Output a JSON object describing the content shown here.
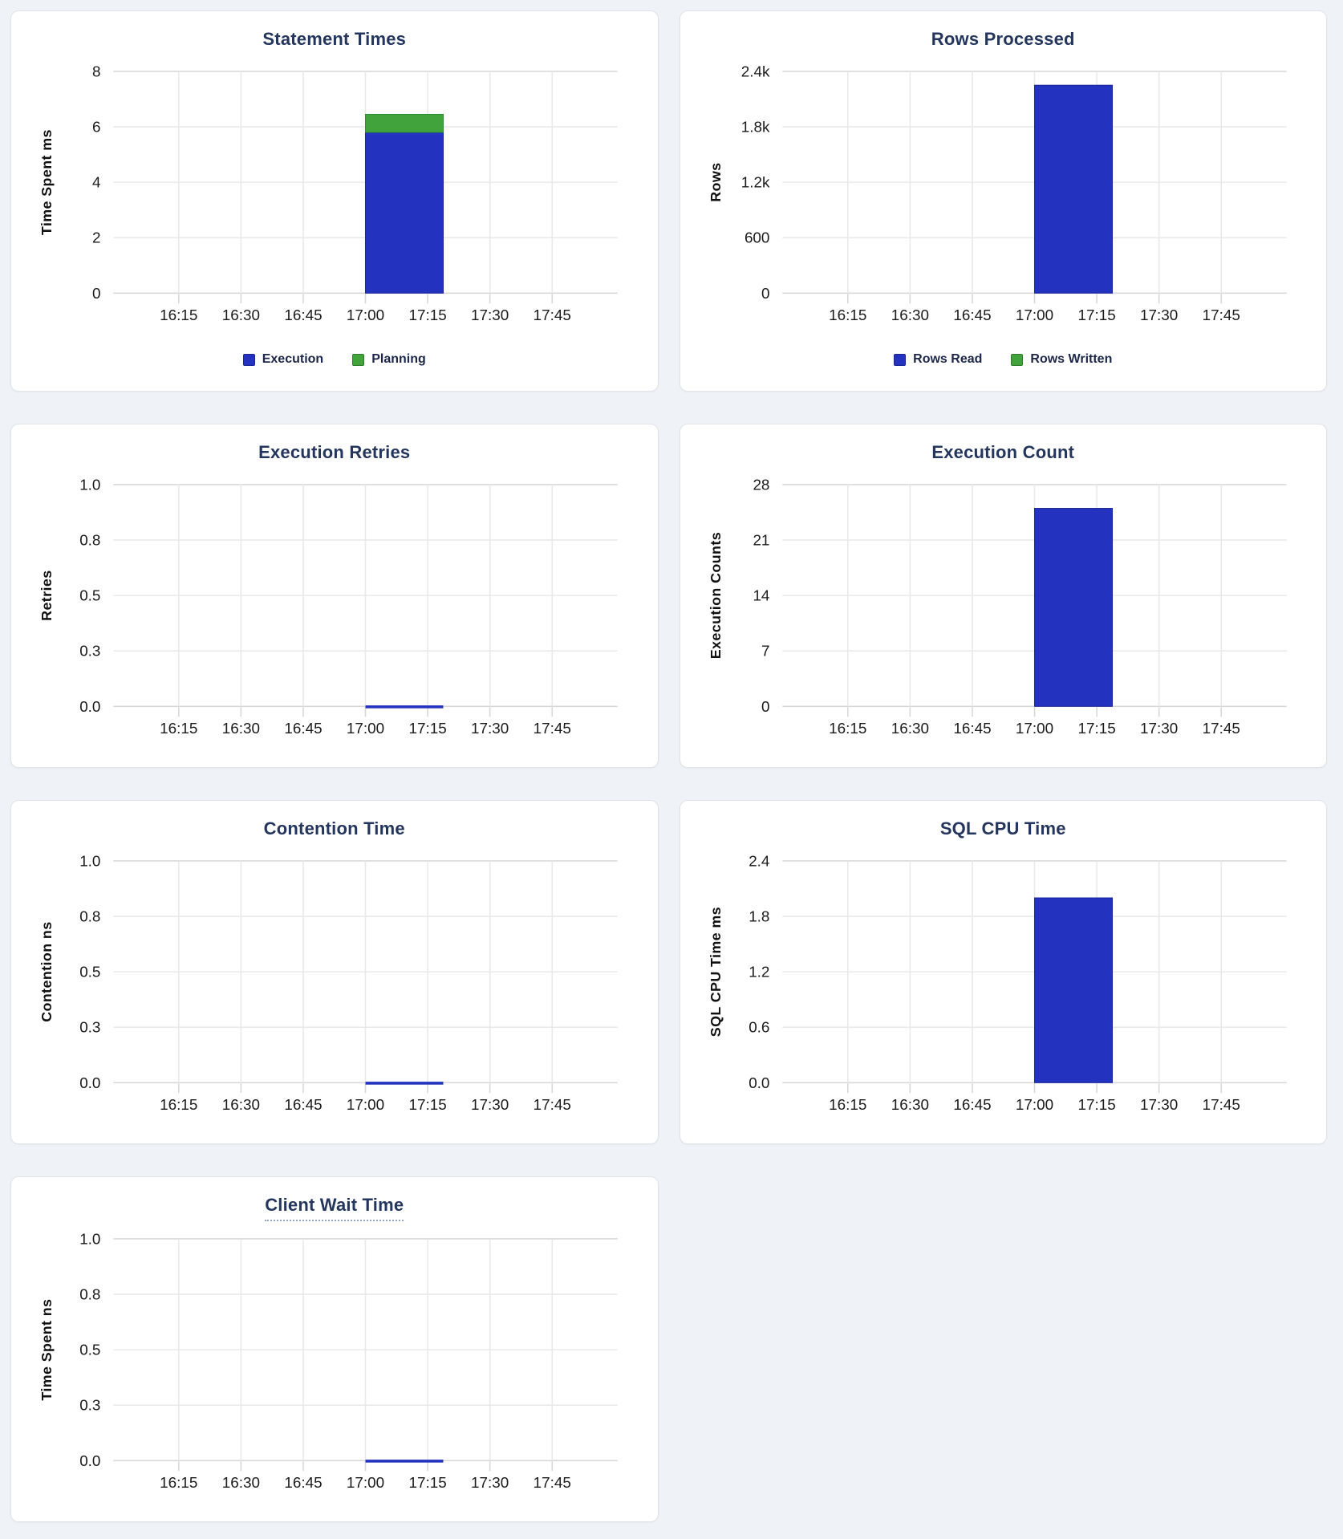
{
  "palette": {
    "blue": "#2333c0",
    "blue_stroke": "#18249a",
    "green": "#41a33c",
    "green_stroke": "#2f8c2c",
    "title": "#24365e",
    "tick_text": "#1b1b1b",
    "axis_label_text": "#101010",
    "grid": "#e9e9e9",
    "grid_edge": "#d8d8d8",
    "page_bg": "#eff3f7",
    "card_bg": "#ffffff"
  },
  "x_ticks": [
    "16:15",
    "16:30",
    "16:45",
    "17:00",
    "17:15",
    "17:30",
    "17:45"
  ],
  "chart_data": [
    {
      "id": "statement-times",
      "type": "bar",
      "title": "Statement Times",
      "xlabel": "",
      "ylabel": "Time Spent ms",
      "ymax": 8,
      "ylim": [
        0,
        8
      ],
      "y_ticks": [
        "0",
        "2",
        "4",
        "6",
        "8"
      ],
      "x_ticks": [
        "16:15",
        "16:30",
        "16:45",
        "17:00",
        "17:15",
        "17:30",
        "17:45"
      ],
      "grid": "on",
      "legend_position": "bottom",
      "bar_span": {
        "from": "17:00",
        "to": "17:18"
      },
      "stacked": true,
      "series": [
        {
          "name": "Execution",
          "color": "#2333c0",
          "value": 5.8
        },
        {
          "name": "Planning",
          "color": "#41a33c",
          "value": 0.65
        }
      ],
      "legend": [
        {
          "label": "Execution",
          "color": "#2333c0"
        },
        {
          "label": "Planning",
          "color": "#41a33c"
        }
      ]
    },
    {
      "id": "rows-processed",
      "type": "bar",
      "title": "Rows Processed",
      "xlabel": "",
      "ylabel": "Rows",
      "ymax": 2400,
      "ylim": [
        0,
        2400
      ],
      "y_ticks": [
        "0",
        "600",
        "1.2k",
        "1.8k",
        "2.4k"
      ],
      "x_ticks": [
        "16:15",
        "16:30",
        "16:45",
        "17:00",
        "17:15",
        "17:30",
        "17:45"
      ],
      "grid": "on",
      "legend_position": "bottom",
      "bar_span": {
        "from": "17:00",
        "to": "17:18"
      },
      "stacked": true,
      "series": [
        {
          "name": "Rows Read",
          "color": "#2333c0",
          "value": 2250
        },
        {
          "name": "Rows Written",
          "color": "#41a33c",
          "value": 0
        }
      ],
      "legend": [
        {
          "label": "Rows Read",
          "color": "#2333c0"
        },
        {
          "label": "Rows Written",
          "color": "#41a33c"
        }
      ]
    },
    {
      "id": "execution-retries",
      "type": "line",
      "title": "Execution Retries",
      "xlabel": "",
      "ylabel": "Retries",
      "ymax": 1,
      "ylim": [
        0,
        1
      ],
      "y_ticks": [
        "0.0",
        "0.3",
        "0.5",
        "0.8",
        "1.0"
      ],
      "x_ticks": [
        "16:15",
        "16:30",
        "16:45",
        "17:00",
        "17:15",
        "17:30",
        "17:45"
      ],
      "grid": "on",
      "bar_span": {
        "from": "17:00",
        "to": "17:18"
      },
      "series": [
        {
          "name": "Retries",
          "color": "#2333c0",
          "value": 0
        }
      ]
    },
    {
      "id": "execution-count",
      "type": "bar",
      "title": "Execution Count",
      "xlabel": "",
      "ylabel": "Execution Counts",
      "ymax": 28,
      "ylim": [
        0,
        28
      ],
      "y_ticks": [
        "0",
        "7",
        "14",
        "21",
        "28"
      ],
      "x_ticks": [
        "16:15",
        "16:30",
        "16:45",
        "17:00",
        "17:15",
        "17:30",
        "17:45"
      ],
      "grid": "on",
      "bar_span": {
        "from": "17:00",
        "to": "17:18"
      },
      "stacked": false,
      "series": [
        {
          "name": "Execution Count",
          "color": "#2333c0",
          "value": 25
        }
      ]
    },
    {
      "id": "contention-time",
      "type": "line",
      "title": "Contention Time",
      "xlabel": "",
      "ylabel": "Contention ns",
      "ymax": 1,
      "ylim": [
        0,
        1
      ],
      "y_ticks": [
        "0.0",
        "0.3",
        "0.5",
        "0.8",
        "1.0"
      ],
      "x_ticks": [
        "16:15",
        "16:30",
        "16:45",
        "17:00",
        "17:15",
        "17:30",
        "17:45"
      ],
      "grid": "on",
      "bar_span": {
        "from": "17:00",
        "to": "17:18"
      },
      "series": [
        {
          "name": "Contention",
          "color": "#2333c0",
          "value": 0
        }
      ]
    },
    {
      "id": "sql-cpu-time",
      "type": "bar",
      "title": "SQL CPU Time",
      "xlabel": "",
      "ylabel": "SQL CPU Time ms",
      "ymax": 2.4,
      "ylim": [
        0,
        2.4
      ],
      "y_ticks": [
        "0.0",
        "0.6",
        "1.2",
        "1.8",
        "2.4"
      ],
      "x_ticks": [
        "16:15",
        "16:30",
        "16:45",
        "17:00",
        "17:15",
        "17:30",
        "17:45"
      ],
      "grid": "on",
      "bar_span": {
        "from": "17:00",
        "to": "17:18"
      },
      "stacked": false,
      "series": [
        {
          "name": "SQL CPU Time",
          "color": "#2333c0",
          "value": 2.0
        }
      ]
    },
    {
      "id": "client-wait-time",
      "type": "line",
      "title": "Client Wait Time",
      "title_has_tooltip_underline": true,
      "xlabel": "",
      "ylabel": "Time Spent ns",
      "ymax": 1,
      "ylim": [
        0,
        1
      ],
      "y_ticks": [
        "0.0",
        "0.3",
        "0.5",
        "0.8",
        "1.0"
      ],
      "x_ticks": [
        "16:15",
        "16:30",
        "16:45",
        "17:00",
        "17:15",
        "17:30",
        "17:45"
      ],
      "grid": "on",
      "bar_span": {
        "from": "17:00",
        "to": "17:18"
      },
      "series": [
        {
          "name": "Client Wait",
          "color": "#2333c0",
          "value": 0
        }
      ]
    }
  ]
}
